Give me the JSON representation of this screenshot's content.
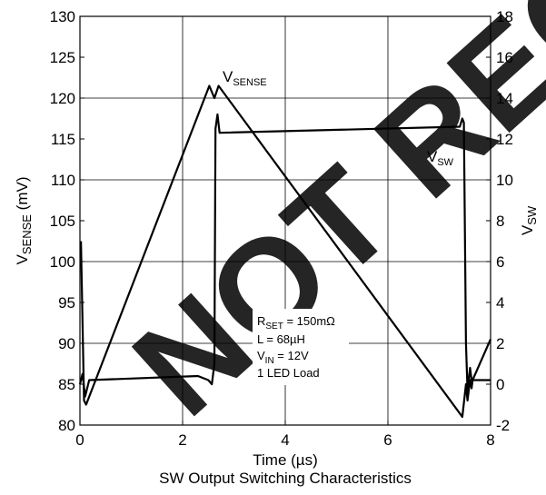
{
  "chart_data": {
    "type": "line",
    "title": "SW Output Switching Characteristics",
    "xlabel": "Time (µs)",
    "ylabel_left": {
      "main": "V",
      "sub": "SENSE",
      "tail": " (mV)"
    },
    "ylabel_right": {
      "main": "V",
      "sub": "SW",
      "tail": ""
    },
    "xlim": [
      0,
      8
    ],
    "ylim_left": [
      80,
      130
    ],
    "ylim_right": [
      -2,
      18
    ],
    "x_ticks": [
      0,
      2,
      4,
      6,
      8
    ],
    "y_ticks_left": [
      80,
      85,
      90,
      95,
      100,
      105,
      110,
      115,
      120,
      125,
      130
    ],
    "y_ticks_right": [
      -2,
      0,
      2,
      4,
      6,
      8,
      10,
      12,
      14,
      16,
      18
    ],
    "grid": true,
    "line_color": "#000000",
    "series": [
      {
        "name": "VSENSE",
        "axis": "left",
        "label": {
          "main": "V",
          "sub": "SENSE"
        },
        "x": [
          0.02,
          0.08,
          0.12,
          2.52,
          2.62,
          2.7,
          7.45,
          7.52,
          7.55,
          7.6,
          7.63,
          7.65,
          8.0
        ],
        "y": [
          102.5,
          83,
          82.5,
          121.5,
          120,
          121.5,
          81,
          85,
          83,
          85.5,
          84.5,
          85.5,
          90.5
        ]
      },
      {
        "name": "VSW",
        "axis": "right",
        "label": {
          "main": "V",
          "sub": "SW"
        },
        "x": [
          0.0,
          0.05,
          0.1,
          0.18,
          2.3,
          2.5,
          2.57,
          2.62,
          2.64,
          2.68,
          2.72,
          7.4,
          7.45,
          7.48,
          7.52,
          7.55,
          7.6,
          7.63,
          7.66,
          8.0
        ],
        "y": [
          0.0,
          0.5,
          -0.6,
          0.2,
          0.4,
          0.2,
          0.0,
          1.0,
          12.5,
          13.2,
          12.3,
          12.6,
          13.0,
          12.8,
          2.0,
          -0.3,
          0.8,
          0.2,
          0.2,
          0.2
        ]
      }
    ],
    "annotations": [
      {
        "main": "R",
        "sub": "SET",
        "tail": " = 150mΩ"
      },
      {
        "main": "L = 68µH",
        "sub": "",
        "tail": ""
      },
      {
        "main": "V",
        "sub": "IN",
        "tail": " = 12V"
      },
      {
        "main": "1 LED Load",
        "sub": "",
        "tail": ""
      }
    ]
  },
  "watermark": {
    "text": "NOT RECOMMENDED FOR NEW DESIGNS",
    "color": "#d9d9d9"
  }
}
